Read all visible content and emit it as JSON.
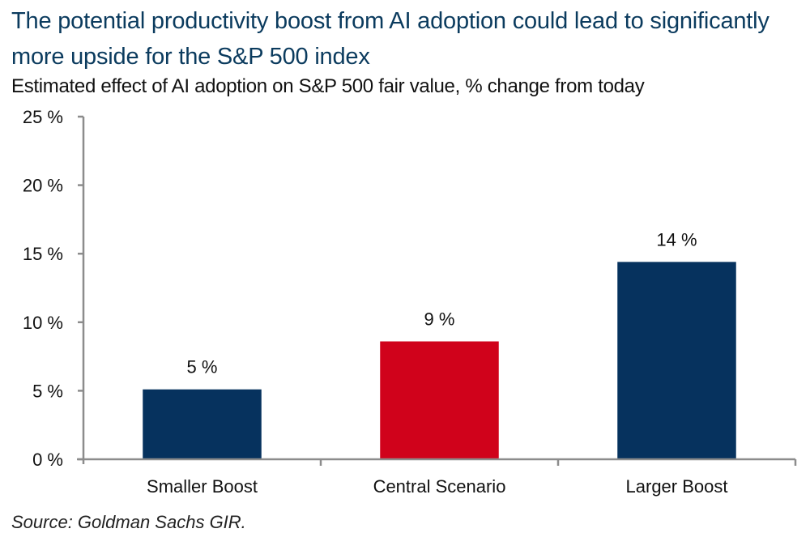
{
  "header": {
    "title": "The potential productivity boost from AI adoption could lead to significantly more upside for the S&P 500 index",
    "subtitle": "Estimated effect of AI adoption on S&P 500 fair value, % change from today"
  },
  "footer": {
    "source": "Source: Goldman Sachs GIR."
  },
  "colors": {
    "title": "#0b3b5e",
    "navy": "#06325e",
    "red": "#d0021b",
    "axis": "#8c8c8c"
  },
  "chart_data": {
    "type": "bar",
    "title": "The potential productivity boost from AI adoption could lead to significantly more upside for the S&P 500 index",
    "subtitle": "Estimated effect of AI adoption on S&P 500 fair value, % change from today",
    "xlabel": "",
    "ylabel": "",
    "categories": [
      "Smaller Boost",
      "Central Scenario",
      "Larger Boost"
    ],
    "values": [
      5.1,
      8.6,
      14.4
    ],
    "data_labels": [
      "5 %",
      "9 %",
      "14 %"
    ],
    "bar_colors": [
      "#06325e",
      "#d0021b",
      "#06325e"
    ],
    "ylim": [
      0,
      25
    ],
    "yticks": [
      0,
      5,
      10,
      15,
      20,
      25
    ],
    "ytick_labels": [
      "0 %",
      "5 %",
      "10 %",
      "15 %",
      "20 %",
      "25 %"
    ],
    "grid": false,
    "legend": "none",
    "source": "Source: Goldman Sachs GIR."
  }
}
